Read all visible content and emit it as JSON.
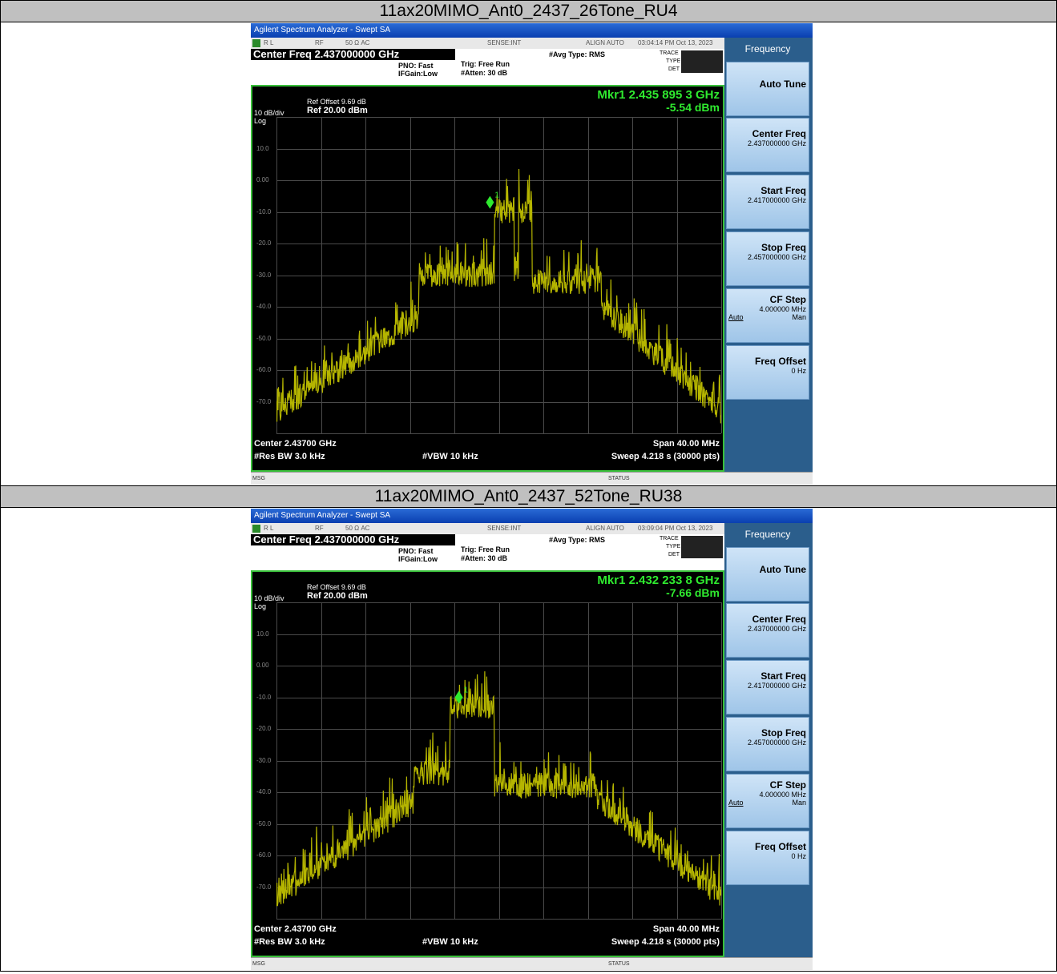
{
  "panels": [
    {
      "header": "11ax20MIMO_Ant0_2437_26Tone_RU4",
      "window_title": "Agilent Spectrum Analyzer - Swept SA",
      "status": {
        "rl": "R L",
        "rf": "RF",
        "ohm": "50 Ω  AC",
        "sense": "SENSE:INT",
        "align": "ALIGN AUTO",
        "time": "03:04:14 PM Oct 13, 2023"
      },
      "center_freq_title": "Center Freq 2.437000000 GHz",
      "pno": "PNO: Fast",
      "ifgain": "IFGain:Low",
      "trig": "Trig: Free Run",
      "atten": "#Atten: 30 dB",
      "avg_type": "#Avg Type: RMS",
      "trace_label": "TRACE",
      "type_label": "TYPE",
      "det_label": "DET",
      "ref_offset": "Ref Offset 9.69 dB",
      "ref_level": "Ref 20.00 dBm",
      "db_div": "10 dB/div",
      "log": "Log",
      "marker_freq": "Mkr1 2.435 895 3 GHz",
      "marker_level": "-5.54 dBm",
      "center": "Center 2.43700 GHz",
      "span": "Span 40.00 MHz",
      "res_bw": "#Res BW 3.0 kHz",
      "vbw": "#VBW 10 kHz",
      "sweep": "Sweep  4.218 s (30000 pts)",
      "msg": "MSG",
      "status_label": "STATUS",
      "marker_x": 0.48,
      "marker_y": 0.27,
      "shape": "26tone"
    },
    {
      "header": "11ax20MIMO_Ant0_2437_52Tone_RU38",
      "window_title": "Agilent Spectrum Analyzer - Swept SA",
      "status": {
        "rl": "R L",
        "rf": "RF",
        "ohm": "50 Ω  AC",
        "sense": "SENSE:INT",
        "align": "ALIGN AUTO",
        "time": "03:09:04 PM Oct 13, 2023"
      },
      "center_freq_title": "Center Freq 2.437000000 GHz",
      "pno": "PNO: Fast",
      "ifgain": "IFGain:Low",
      "trig": "Trig: Free Run",
      "atten": "#Atten: 30 dB",
      "avg_type": "#Avg Type: RMS",
      "trace_label": "TRACE",
      "type_label": "TYPE",
      "det_label": "DET",
      "ref_offset": "Ref Offset 9.69 dB",
      "ref_level": "Ref 20.00 dBm",
      "db_div": "10 dB/div",
      "log": "Log",
      "marker_freq": "Mkr1 2.432 233 8 GHz",
      "marker_level": "-7.66 dBm",
      "center": "Center 2.43700 GHz",
      "span": "Span 40.00 MHz",
      "res_bw": "#Res BW 3.0 kHz",
      "vbw": "#VBW 10 kHz",
      "sweep": "Sweep  4.218 s (30000 pts)",
      "msg": "MSG",
      "status_label": "STATUS",
      "marker_x": 0.41,
      "marker_y": 0.3,
      "shape": "52tone"
    }
  ],
  "y_labels": [
    "10.0",
    "0.00",
    "-10.0",
    "-20.0",
    "-30.0",
    "-40.0",
    "-50.0",
    "-60.0",
    "-70.0"
  ],
  "softkeys": {
    "header": "Frequency",
    "auto_tune": "Auto Tune",
    "center_freq": "Center Freq",
    "center_freq_val": "2.437000000 GHz",
    "start_freq": "Start Freq",
    "start_freq_val": "2.417000000 GHz",
    "stop_freq": "Stop Freq",
    "stop_freq_val": "2.457000000 GHz",
    "cf_step": "CF Step",
    "cf_step_val": "4.000000 MHz",
    "auto": "Auto",
    "man": "Man",
    "freq_offset": "Freq Offset",
    "freq_offset_val": "0 Hz"
  },
  "trace_color": "#b5b500",
  "marker_color": "#2fea2f"
}
